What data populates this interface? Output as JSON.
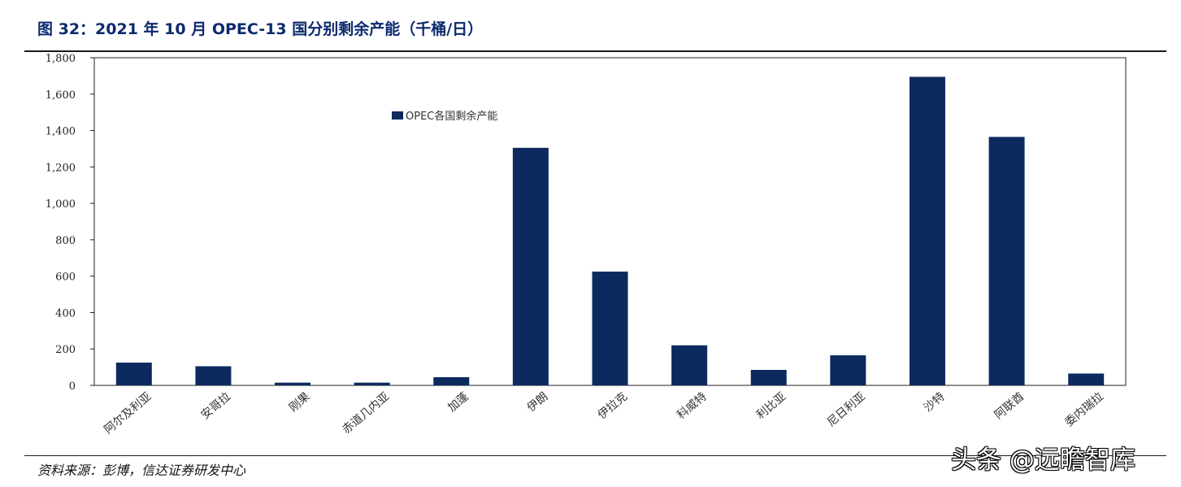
{
  "figure": {
    "title": "图 32：2021 年 10 月 OPEC-13 国分别剩余产能（千桶/日）",
    "source": "资料来源：彭博，信达证券研发中心",
    "watermark": "头条 @远瞻智库"
  },
  "chart_data": {
    "type": "bar",
    "title": "",
    "xlabel": "",
    "ylabel": "",
    "categories": [
      "阿尔及利亚",
      "安哥拉",
      "刚果",
      "赤道几内亚",
      "加蓬",
      "伊朗",
      "伊拉克",
      "科威特",
      "利比亚",
      "尼日利亚",
      "沙特",
      "阿联酋",
      "委内瑞拉"
    ],
    "series": [
      {
        "name": "OPEC各国剩余产能",
        "color": "#0c2a5e",
        "values": [
          125,
          105,
          15,
          15,
          45,
          1305,
          625,
          220,
          85,
          165,
          1695,
          1365,
          65
        ]
      }
    ],
    "ylim": [
      0,
      1800
    ],
    "yticks": [
      0,
      200,
      400,
      600,
      800,
      1000,
      1200,
      1400,
      1600,
      1800
    ],
    "ytick_labels": [
      "0",
      "200",
      "400",
      "600",
      "800",
      "1,000",
      "1,200",
      "1,400",
      "1,600",
      "1,800"
    ],
    "grid": false,
    "legend": "top-left inside plot"
  }
}
